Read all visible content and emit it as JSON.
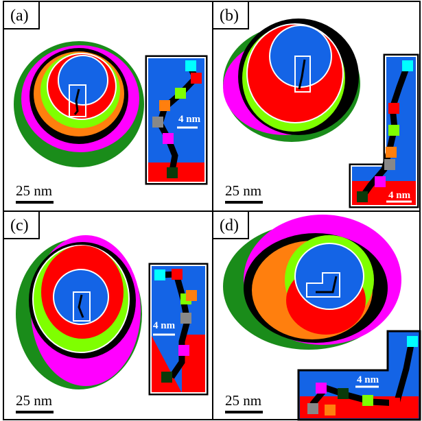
{
  "panels": [
    {
      "label": "(a)",
      "scale_bar": "25 nm",
      "inset_scale_bar": "4 nm"
    },
    {
      "label": "(b)",
      "scale_bar": "25 nm",
      "inset_scale_bar": "4 nm"
    },
    {
      "label": "(c)",
      "scale_bar": "25 nm",
      "inset_scale_bar": "4 nm"
    },
    {
      "label": "(d)",
      "scale_bar": "25 nm",
      "inset_scale_bar": "4 nm"
    }
  ]
}
